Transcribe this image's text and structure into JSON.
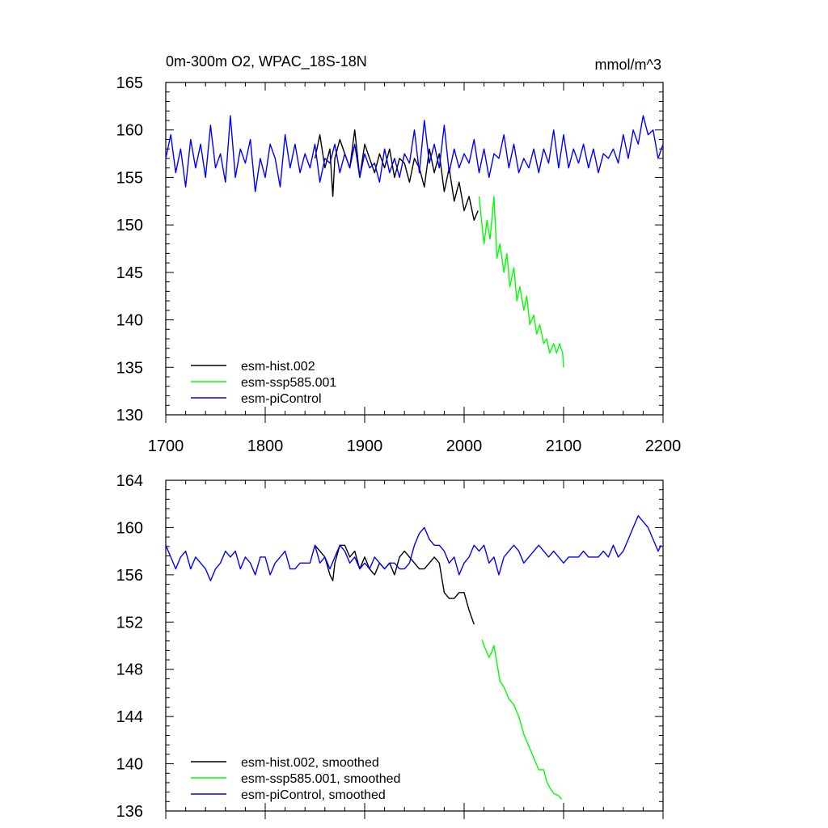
{
  "chart_data": [
    {
      "type": "line",
      "title": "0m-300m O2, WPAC_18S-18N",
      "units": "mmol/m^3",
      "xlim": [
        1700,
        2200
      ],
      "ylim": [
        130,
        165
      ],
      "xticks": [
        "1700",
        "1800",
        "1900",
        "2000",
        "2100",
        "2200"
      ],
      "yticks": [
        "130",
        "135",
        "140",
        "145",
        "150",
        "155",
        "160",
        "165"
      ],
      "legend_position": "bottom-left",
      "series": [
        {
          "name": "esm-hist.002",
          "color": "#000000",
          "x": [
            1850,
            1855,
            1860,
            1865,
            1868,
            1870,
            1875,
            1880,
            1885,
            1890,
            1895,
            1900,
            1905,
            1910,
            1915,
            1920,
            1925,
            1930,
            1935,
            1940,
            1945,
            1950,
            1955,
            1960,
            1965,
            1970,
            1975,
            1980,
            1985,
            1990,
            1995,
            2000,
            2005,
            2010,
            2014
          ],
          "y": [
            157,
            159.5,
            156,
            158,
            153,
            157,
            159,
            157.5,
            156,
            160,
            155,
            158.5,
            157,
            155.5,
            157.5,
            156,
            158,
            155,
            157,
            156.5,
            154.5,
            157,
            156,
            154,
            158,
            155.5,
            157.5,
            153.5,
            156,
            152.5,
            154.5,
            151.5,
            153,
            150.5,
            151.5
          ]
        },
        {
          "name": "esm-ssp585.001",
          "color": "#00ff00",
          "x": [
            2015,
            2018,
            2020,
            2023,
            2026,
            2030,
            2033,
            2036,
            2040,
            2043,
            2046,
            2050,
            2053,
            2056,
            2060,
            2063,
            2066,
            2070,
            2073,
            2076,
            2080,
            2083,
            2086,
            2090,
            2093,
            2096,
            2099,
            2100
          ],
          "y": [
            153,
            150,
            148,
            150.5,
            148.5,
            153,
            146.5,
            148,
            145,
            147,
            143.5,
            145.5,
            142,
            143.5,
            141,
            142.5,
            139.5,
            140.5,
            138.5,
            139.5,
            137.5,
            138,
            136.5,
            137.5,
            136.5,
            137.5,
            136.5,
            135
          ]
        },
        {
          "name": "esm-piControl",
          "color": "#0000ff",
          "x": [
            1700,
            1705,
            1710,
            1715,
            1720,
            1725,
            1730,
            1735,
            1740,
            1745,
            1750,
            1755,
            1760,
            1765,
            1770,
            1775,
            1780,
            1785,
            1790,
            1795,
            1800,
            1805,
            1810,
            1815,
            1820,
            1825,
            1830,
            1835,
            1840,
            1845,
            1850,
            1855,
            1860,
            1865,
            1870,
            1875,
            1880,
            1885,
            1890,
            1895,
            1900,
            1905,
            1910,
            1915,
            1920,
            1925,
            1930,
            1935,
            1940,
            1945,
            1950,
            1955,
            1960,
            1965,
            1970,
            1975,
            1980,
            1985,
            1990,
            1995,
            2000,
            2005,
            2010,
            2015,
            2020,
            2025,
            2030,
            2035,
            2040,
            2045,
            2050,
            2055,
            2060,
            2065,
            2070,
            2075,
            2080,
            2085,
            2090,
            2095,
            2100,
            2105,
            2110,
            2115,
            2120,
            2125,
            2130,
            2135,
            2140,
            2145,
            2150,
            2155,
            2160,
            2165,
            2170,
            2175,
            2180,
            2185,
            2190,
            2195,
            2200
          ],
          "y": [
            157,
            159.5,
            155.5,
            158,
            154,
            159,
            156,
            158.5,
            155,
            160.5,
            156,
            157.5,
            154.5,
            161.5,
            155,
            158,
            156.5,
            159,
            153.5,
            157,
            155,
            158.5,
            157,
            154,
            159.5,
            156,
            158.5,
            155.5,
            157.5,
            156,
            158.5,
            154.5,
            157,
            156.5,
            158.5,
            155.5,
            157.5,
            156,
            158.5,
            155,
            157.5,
            156,
            156.5,
            154.5,
            158,
            155.5,
            157,
            155,
            157.5,
            156.5,
            160,
            155.5,
            161,
            156.5,
            158.5,
            156,
            160.5,
            155.5,
            158,
            156,
            157.5,
            156.5,
            159,
            155.5,
            158,
            155,
            157.5,
            157,
            159.5,
            156,
            158.5,
            155.5,
            157,
            156,
            158,
            155.5,
            158,
            156.5,
            160,
            156,
            159.5,
            156,
            158,
            156.5,
            158.5,
            156,
            158,
            155.5,
            157.5,
            157,
            158,
            156.5,
            159.5,
            157,
            160,
            158.5,
            161.5,
            159.5,
            160,
            157,
            158.5
          ]
        }
      ]
    },
    {
      "type": "line",
      "xlim": [
        1700,
        2200
      ],
      "ylim": [
        136,
        164
      ],
      "yticks": [
        "136",
        "140",
        "144",
        "148",
        "152",
        "156",
        "160",
        "164"
      ],
      "legend_position": "bottom-left",
      "series": [
        {
          "name": "esm-hist.002, smoothed",
          "color": "#000000",
          "x": [
            1850,
            1855,
            1860,
            1865,
            1868,
            1870,
            1875,
            1880,
            1885,
            1890,
            1895,
            1900,
            1905,
            1910,
            1915,
            1920,
            1925,
            1930,
            1935,
            1940,
            1945,
            1950,
            1955,
            1960,
            1965,
            1970,
            1975,
            1980,
            1985,
            1990,
            1995,
            2000,
            2005,
            2010
          ],
          "y": [
            158.5,
            158,
            157.5,
            156,
            155.5,
            157,
            158.5,
            158.5,
            157.5,
            158,
            156.5,
            157.5,
            156.5,
            156,
            157,
            156.5,
            157,
            156,
            157.5,
            158,
            157.5,
            157,
            156.5,
            156.5,
            157,
            157.5,
            157,
            154.5,
            154,
            154,
            154.5,
            154.5,
            153,
            151.8
          ]
        },
        {
          "name": "esm-ssp585.001, smoothed",
          "color": "#00ff00",
          "x": [
            2018,
            2020,
            2025,
            2028,
            2030,
            2033,
            2036,
            2040,
            2045,
            2050,
            2055,
            2060,
            2065,
            2070,
            2075,
            2080,
            2083,
            2086,
            2090,
            2095,
            2098
          ],
          "y": [
            150.5,
            150,
            149,
            149.5,
            150,
            148.5,
            147,
            146.5,
            145.5,
            145,
            144,
            142.5,
            141.5,
            140.5,
            139.5,
            139.5,
            138.5,
            138,
            137.5,
            137.3,
            137
          ]
        },
        {
          "name": "esm-piControl, smoothed",
          "color": "#0000ff",
          "x": [
            1700,
            1705,
            1710,
            1715,
            1720,
            1725,
            1730,
            1735,
            1740,
            1745,
            1750,
            1755,
            1760,
            1765,
            1770,
            1775,
            1780,
            1785,
            1790,
            1795,
            1800,
            1805,
            1810,
            1815,
            1820,
            1825,
            1830,
            1835,
            1840,
            1845,
            1850,
            1855,
            1860,
            1865,
            1870,
            1875,
            1880,
            1885,
            1890,
            1895,
            1900,
            1905,
            1910,
            1915,
            1920,
            1925,
            1930,
            1935,
            1940,
            1945,
            1950,
            1955,
            1960,
            1965,
            1970,
            1975,
            1980,
            1985,
            1990,
            1995,
            2000,
            2005,
            2010,
            2015,
            2020,
            2025,
            2030,
            2035,
            2040,
            2045,
            2050,
            2055,
            2060,
            2065,
            2070,
            2075,
            2080,
            2085,
            2090,
            2095,
            2100,
            2105,
            2110,
            2115,
            2120,
            2125,
            2130,
            2135,
            2140,
            2145,
            2150,
            2155,
            2160,
            2165,
            2170,
            2175,
            2180,
            2185,
            2190,
            2195,
            2198
          ],
          "y": [
            158.5,
            157.5,
            156.5,
            157.5,
            158,
            156.5,
            157.5,
            157,
            156.5,
            155.5,
            156.5,
            157,
            158,
            157.5,
            158,
            156.5,
            157.5,
            157,
            156,
            157.5,
            157.5,
            156,
            157,
            157.5,
            158,
            156.5,
            156.5,
            157,
            157,
            157,
            158.5,
            157,
            157.5,
            156.5,
            157.5,
            158.5,
            158,
            157,
            157.5,
            156.5,
            157,
            156.5,
            157.5,
            157,
            156.5,
            157,
            157,
            156.5,
            156.5,
            157,
            158.5,
            159.5,
            160,
            159,
            158.5,
            158.5,
            158,
            157,
            157.5,
            156,
            157,
            157.5,
            158.5,
            158,
            158.5,
            157,
            157.5,
            156,
            157.5,
            158,
            158.5,
            158,
            157,
            157.5,
            158,
            158.5,
            158,
            157.5,
            158,
            157.5,
            157,
            157.5,
            157.5,
            157.5,
            158,
            157.5,
            157.5,
            157.5,
            158,
            157.5,
            158.5,
            157.5,
            158,
            159,
            160,
            161,
            160.5,
            160,
            159,
            158,
            158.5
          ]
        }
      ]
    }
  ]
}
